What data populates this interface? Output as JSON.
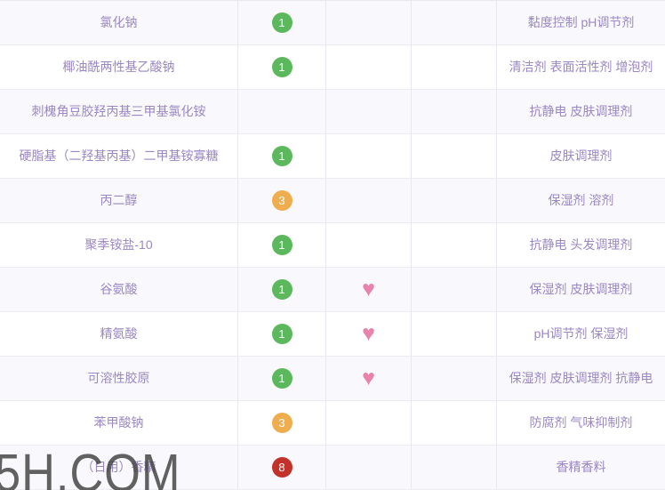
{
  "watermark": "5H.COM",
  "colors": {
    "badge_green": "#5cb85c",
    "badge_orange": "#f0ad4e",
    "badge_red": "#c2312a",
    "heart_pink": "#ea82ae",
    "text_purple": "#9b87c3",
    "row_alt_bg": "#f9f8fd"
  },
  "heart_glyph": "♥",
  "rows": [
    {
      "name": "氯化钠",
      "score": "1",
      "score_level": "green",
      "heart": false,
      "functions": "黏度控制 pH调节剂"
    },
    {
      "name": "椰油酰两性基乙酸钠",
      "score": "1",
      "score_level": "green",
      "heart": false,
      "functions": "清洁剂 表面活性剂 增泡剂"
    },
    {
      "name": "刺槐角豆胶羟丙基三甲基氯化铵",
      "score": "",
      "score_level": "",
      "heart": false,
      "functions": "抗静电 皮肤调理剂"
    },
    {
      "name": "硬脂基（二羟基丙基）二甲基铵寡糖",
      "score": "1",
      "score_level": "green",
      "heart": false,
      "functions": "皮肤调理剂"
    },
    {
      "name": "丙二醇",
      "score": "3",
      "score_level": "orange",
      "heart": false,
      "functions": "保湿剂 溶剂"
    },
    {
      "name": "聚季铵盐-10",
      "score": "1",
      "score_level": "green",
      "heart": false,
      "functions": "抗静电 头发调理剂"
    },
    {
      "name": "谷氨酸",
      "score": "1",
      "score_level": "green",
      "heart": true,
      "functions": "保湿剂 皮肤调理剂"
    },
    {
      "name": "精氨酸",
      "score": "1",
      "score_level": "green",
      "heart": true,
      "functions": "pH调节剂 保湿剂"
    },
    {
      "name": "可溶性胶原",
      "score": "1",
      "score_level": "green",
      "heart": true,
      "functions": "保湿剂 皮肤调理剂 抗静电"
    },
    {
      "name": "苯甲酸钠",
      "score": "3",
      "score_level": "orange",
      "heart": false,
      "functions": "防腐剂 气味抑制剂"
    },
    {
      "name": "（日用）香精",
      "score": "8",
      "score_level": "red",
      "heart": false,
      "functions": "香精香料"
    }
  ]
}
